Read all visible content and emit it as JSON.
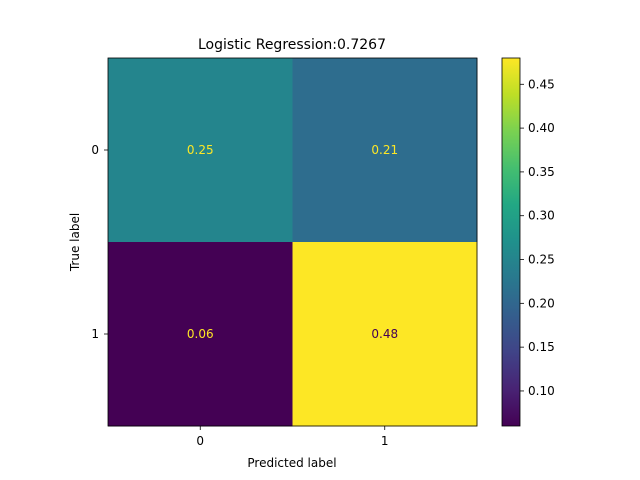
{
  "chart_data": {
    "type": "heatmap",
    "title": "Logistic Regression:0.7267",
    "xlabel": "Predicted label",
    "ylabel": "True label",
    "x_categories": [
      "0",
      "1"
    ],
    "y_categories": [
      "0",
      "1"
    ],
    "values": [
      [
        0.25,
        0.21
      ],
      [
        0.06,
        0.48
      ]
    ],
    "value_labels": [
      [
        "0.25",
        "0.21"
      ],
      [
        "0.06",
        "0.48"
      ]
    ],
    "colorbar": {
      "vmin": 0.06,
      "vmax": 0.48,
      "ticks": [
        0.1,
        0.15,
        0.2,
        0.25,
        0.3,
        0.35,
        0.4,
        0.45
      ],
      "tick_labels": [
        "0.10",
        "0.15",
        "0.20",
        "0.25",
        "0.30",
        "0.35",
        "0.40",
        "0.45"
      ]
    },
    "colormap": "viridis",
    "text_color_on_dark": "#fde725",
    "text_color_on_light": "#440154"
  }
}
